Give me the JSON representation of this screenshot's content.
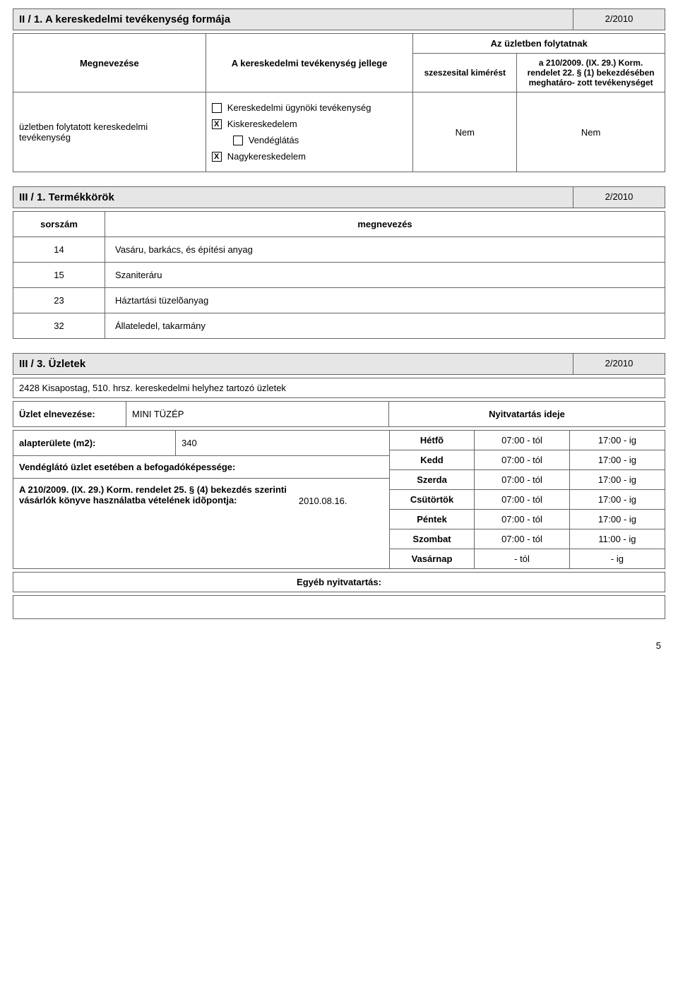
{
  "section2": {
    "title": "II / 1.  A kereskedelmi tevékenység formája",
    "year": "2/2010",
    "headers": {
      "megnevezese": "Megnevezése",
      "jellege": "A kereskedelmi tevékenység jellege",
      "folytatnak": "Az üzletben folytatnak",
      "szeszesital": "szeszesital kimérést",
      "rendelet": "a 210/2009. (IX. 29.) Korm. rendelet 22. § (1) bekezdésében meghatáro- zott tevékenységet"
    },
    "row_label": "üzletben folytatott kereskedelmi tevékenység",
    "options": {
      "ugynoki": "Kereskedelmi  ügynöki tevékenység",
      "kisker": "Kiskereskedelem",
      "vendeg": "Vendéglátás",
      "nagyker": "Nagykereskedelem"
    },
    "checks": {
      "ugynoki": "",
      "kisker": "X",
      "vendeg": "",
      "nagyker": "X"
    },
    "nem1": "Nem",
    "nem2": "Nem"
  },
  "section3_1": {
    "title": "III / 1. Termékkörök",
    "year": "2/2010",
    "headers": {
      "sorszam": "sorszám",
      "megnevezes": "megnevezés"
    },
    "rows": [
      {
        "n": "14",
        "t": "Vasáru, barkács, és építési anyag"
      },
      {
        "n": "15",
        "t": "Szaniteráru"
      },
      {
        "n": "23",
        "t": "Háztartási tüzelõanyag"
      },
      {
        "n": "32",
        "t": "Állateledel, takarmány"
      }
    ]
  },
  "section3_3": {
    "title": "III / 3. Üzletek",
    "year": "2/2010",
    "address": "2428 Kisapostag, 510. hrsz. kereskedelmi helyhez tartozó üzletek",
    "name_label": "Üzlet elnevezése:",
    "name_value": "MINI TÜZÉP",
    "hours_label": "Nyitvatartás ideje",
    "area_label": "alapterülete (m2):",
    "area_value": "340",
    "vendeglato_label": "Vendéglátó üzlet esetében a befogadóképessége:",
    "konyv_label": "A 210/2009. (IX. 29.) Korm. rendelet 25. § (4) bekezdés szerinti vásárlók könyve használatba vételének idõpontja:",
    "konyv_date": "2010.08.16.",
    "egyeb_label": "Egyéb nyitvatartás:",
    "hours": [
      {
        "day": "Hétfõ",
        "from": "07:00 - tól",
        "to": "17:00 - ig"
      },
      {
        "day": "Kedd",
        "from": "07:00 - tól",
        "to": "17:00 - ig"
      },
      {
        "day": "Szerda",
        "from": "07:00 - tól",
        "to": "17:00 - ig"
      },
      {
        "day": "Csütörtök",
        "from": "07:00 - tól",
        "to": "17:00 - ig"
      },
      {
        "day": "Péntek",
        "from": "07:00 - tól",
        "to": "17:00 - ig"
      },
      {
        "day": "Szombat",
        "from": "07:00 - tól",
        "to": "11:00 - ig"
      },
      {
        "day": "Vasárnap",
        "from": "- tól",
        "to": "- ig"
      }
    ]
  },
  "page_number": "5"
}
